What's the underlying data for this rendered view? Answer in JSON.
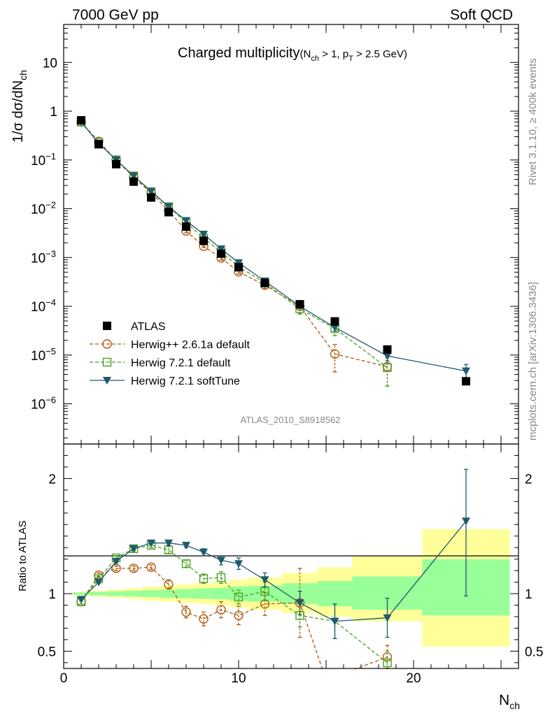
{
  "header": {
    "left_label": "7000 GeV pp",
    "right_label": "Soft QCD",
    "side_label_top": "Rivet 3.1.10, ≥ 400k events",
    "side_label_bottom": "mcplots.cern.ch [arXiv:1306.3436]",
    "analysis_id": "ATLAS_2010_S8918562"
  },
  "chart_data": [
    {
      "type": "line",
      "panel": "main",
      "title": "Charged multiplicity",
      "title_cut": "(N_ch > 1, p_T > 2.5 GeV)",
      "ylabel": "1/σ dσ/dN_ch",
      "yscale": "log",
      "ylim": [
        1.5e-07,
        60
      ],
      "xlim": [
        0,
        26
      ],
      "ytick_labels": [
        "10^-6",
        "10^-5",
        "10^-4",
        "10^-3",
        "10^-2",
        "10^-1",
        "1",
        "10"
      ],
      "legend_position": "lower-left",
      "series": [
        {
          "name": "ATLAS",
          "style": "points",
          "color": "#000000",
          "marker": "square",
          "x": [
            1,
            2,
            3,
            4,
            5,
            6,
            7,
            8,
            9,
            10,
            11.5,
            13.5,
            15.5,
            18.5,
            23
          ],
          "y": [
            0.65,
            0.21,
            0.082,
            0.036,
            0.017,
            0.0085,
            0.0043,
            0.0022,
            0.0012,
            0.00063,
            0.0003,
            0.00011,
            4.9e-05,
            1.3e-05,
            2.9e-06
          ]
        },
        {
          "name": "Herwig++ 2.6.1a default",
          "style": "dashed",
          "color": "#b05a10",
          "marker": "circle",
          "x": [
            1,
            2,
            3,
            4,
            5,
            6,
            7,
            8,
            9,
            10,
            11.5,
            13.5,
            15.5,
            18.5
          ],
          "y": [
            0.6,
            0.24,
            0.1,
            0.044,
            0.021,
            0.0092,
            0.0035,
            0.0017,
            0.00098,
            0.00051,
            0.00027,
            0.0001,
            1.05e-05,
            5.8e-06
          ],
          "err_lo": [
            0.02,
            0.01,
            0.004,
            0.002,
            0.001,
            0.0004,
            0.0003,
            0.0001,
            0.0001,
            5e-05,
            4e-05,
            3e-05,
            6e-06,
            3.5e-06
          ],
          "err_hi": [
            0.02,
            0.01,
            0.004,
            0.002,
            0.001,
            0.0004,
            0.0003,
            0.0001,
            0.0001,
            5e-05,
            4e-05,
            3e-05,
            6e-06,
            3.5e-06
          ]
        },
        {
          "name": "Herwig 7.2.1 default",
          "style": "dashed",
          "color": "#48a020",
          "marker": "open-square",
          "x": [
            1,
            2,
            3,
            4,
            5,
            6,
            7,
            8,
            9,
            10,
            11.5,
            13.5,
            15.5,
            18.5
          ],
          "y": [
            0.6,
            0.23,
            0.1,
            0.047,
            0.022,
            0.011,
            0.0052,
            0.0025,
            0.0013,
            0.00065,
            0.0003,
            8.9e-05,
            3.5e-05,
            5.5e-06
          ],
          "err_lo": [
            0.02,
            0.01,
            0.004,
            0.002,
            0.001,
            0.0005,
            0.0003,
            0.0002,
            0.0001,
            5e-05,
            4e-05,
            2e-05,
            1e-05,
            3.2e-06
          ],
          "err_hi": [
            0.02,
            0.01,
            0.004,
            0.002,
            0.001,
            0.0005,
            0.0003,
            0.0002,
            0.0001,
            5e-05,
            4e-05,
            2e-05,
            1e-05,
            3.2e-06
          ]
        },
        {
          "name": "Herwig 7.2.1 softTune",
          "style": "solid",
          "color": "#1f5a6e",
          "marker": "triangle-down",
          "x": [
            1,
            2,
            3,
            4,
            5,
            6,
            7,
            8,
            9,
            10,
            11.5,
            13.5,
            15.5,
            18.5,
            23
          ],
          "y": [
            0.6,
            0.22,
            0.1,
            0.047,
            0.023,
            0.011,
            0.0057,
            0.003,
            0.0015,
            0.00078,
            0.00033,
            0.0001,
            3.7e-05,
            9.6e-06,
            4.7e-06
          ],
          "err_lo": [
            0.01,
            0.005,
            0.002,
            0.001,
            0.0005,
            0.0003,
            0.0002,
            0.0001,
            5e-05,
            3e-05,
            2e-05,
            1e-05,
            6e-06,
            2e-06,
            1.7e-06
          ],
          "err_hi": [
            0.01,
            0.005,
            0.002,
            0.001,
            0.0005,
            0.0003,
            0.0002,
            0.0001,
            5e-05,
            3e-05,
            2e-05,
            1e-05,
            6e-06,
            2e-06,
            1.7e-06
          ]
        }
      ]
    },
    {
      "type": "line",
      "panel": "ratio",
      "ylabel": "Ratio to ATLAS",
      "xlabel": "N_ch",
      "ylim": [
        0.35,
        2.3
      ],
      "xlim": [
        0,
        26
      ],
      "ytick_labels": [
        "0.5",
        "1",
        "2"
      ],
      "xtick_labels": [
        "0",
        "10",
        "20"
      ],
      "uncertainty_bands": {
        "x_edges": [
          0.5,
          1.5,
          2.5,
          3.5,
          4.5,
          5.5,
          6.5,
          7.5,
          8.5,
          9.5,
          10.5,
          12.5,
          14.5,
          16.5,
          20.5,
          25.5
        ],
        "stat_lo": [
          0.99,
          0.985,
          0.98,
          0.975,
          0.97,
          0.965,
          0.96,
          0.955,
          0.95,
          0.94,
          0.93,
          0.91,
          0.89,
          0.86,
          0.81
        ],
        "stat_hi": [
          1.01,
          1.015,
          1.02,
          1.025,
          1.03,
          1.035,
          1.04,
          1.045,
          1.05,
          1.06,
          1.07,
          1.09,
          1.11,
          1.15,
          1.3
        ],
        "total_lo": [
          0.985,
          0.975,
          0.965,
          0.955,
          0.94,
          0.93,
          0.92,
          0.91,
          0.9,
          0.88,
          0.86,
          0.83,
          0.8,
          0.76,
          0.54
        ],
        "total_hi": [
          1.015,
          1.025,
          1.035,
          1.045,
          1.06,
          1.07,
          1.08,
          1.09,
          1.1,
          1.12,
          1.14,
          1.18,
          1.23,
          1.33,
          1.56
        ]
      },
      "series": [
        {
          "name": "Herwig++ 2.6.1a default",
          "style": "dashed",
          "color": "#b05a10",
          "marker": "circle",
          "x": [
            1,
            2,
            3,
            4,
            5,
            6,
            7,
            8,
            9,
            10,
            11.5,
            13.5,
            15,
            18.5
          ],
          "y": [
            0.93,
            1.16,
            1.22,
            1.22,
            1.23,
            1.08,
            0.84,
            0.78,
            0.86,
            0.81,
            0.91,
            0.92,
            0.25,
            0.45
          ],
          "err_lo": [
            0.02,
            0.02,
            0.02,
            0.02,
            0.02,
            0.04,
            0.05,
            0.06,
            0.07,
            0.08,
            0.1,
            0.3,
            0,
            0.1
          ],
          "err_hi": [
            0.02,
            0.02,
            0.02,
            0.02,
            0.02,
            0.04,
            0.05,
            0.06,
            0.07,
            0.08,
            0.1,
            0.3,
            0,
            0.1
          ],
          "show_marker": [
            true,
            true,
            true,
            true,
            true,
            true,
            true,
            true,
            true,
            true,
            true,
            true,
            false,
            true
          ]
        },
        {
          "name": "Herwig 7.2.1 default",
          "style": "dashed",
          "color": "#48a020",
          "marker": "open-square",
          "x": [
            1,
            2,
            3,
            4,
            5,
            6,
            7,
            8,
            9,
            10,
            11.5,
            13.5,
            15.5,
            18.5
          ],
          "y": [
            0.93,
            1.13,
            1.31,
            1.39,
            1.42,
            1.38,
            1.26,
            1.13,
            1.14,
            0.97,
            1.02,
            0.81,
            0.76,
            0.4
          ],
          "err_lo": [
            0.02,
            0.02,
            0.02,
            0.02,
            0.02,
            0.03,
            0.03,
            0.04,
            0.05,
            0.06,
            0.08,
            0.1,
            0.15,
            0.1
          ],
          "err_hi": [
            0.02,
            0.02,
            0.02,
            0.02,
            0.02,
            0.03,
            0.03,
            0.04,
            0.05,
            0.06,
            0.08,
            0.1,
            0.15,
            0.1
          ],
          "show_marker": [
            true,
            true,
            true,
            true,
            true,
            true,
            true,
            true,
            true,
            true,
            true,
            true,
            false,
            true
          ]
        },
        {
          "name": "Herwig 7.2.1 softTune",
          "style": "solid",
          "color": "#1f5a6e",
          "marker": "triangle-down",
          "x": [
            1,
            2,
            3,
            4,
            5,
            6,
            7,
            8,
            9,
            10,
            11.5,
            13.5,
            15.5,
            18.5,
            23
          ],
          "y": [
            0.95,
            1.1,
            1.28,
            1.39,
            1.44,
            1.44,
            1.42,
            1.36,
            1.29,
            1.26,
            1.12,
            0.92,
            0.76,
            0.79,
            1.63
          ],
          "err_lo": [
            0.01,
            0.01,
            0.01,
            0.01,
            0.01,
            0.02,
            0.02,
            0.03,
            0.04,
            0.05,
            0.06,
            0.1,
            0.15,
            0.17,
            0.65
          ],
          "err_hi": [
            0.01,
            0.01,
            0.01,
            0.01,
            0.01,
            0.02,
            0.02,
            0.03,
            0.04,
            0.05,
            0.06,
            0.1,
            0.15,
            0.17,
            0.45
          ]
        }
      ]
    }
  ]
}
